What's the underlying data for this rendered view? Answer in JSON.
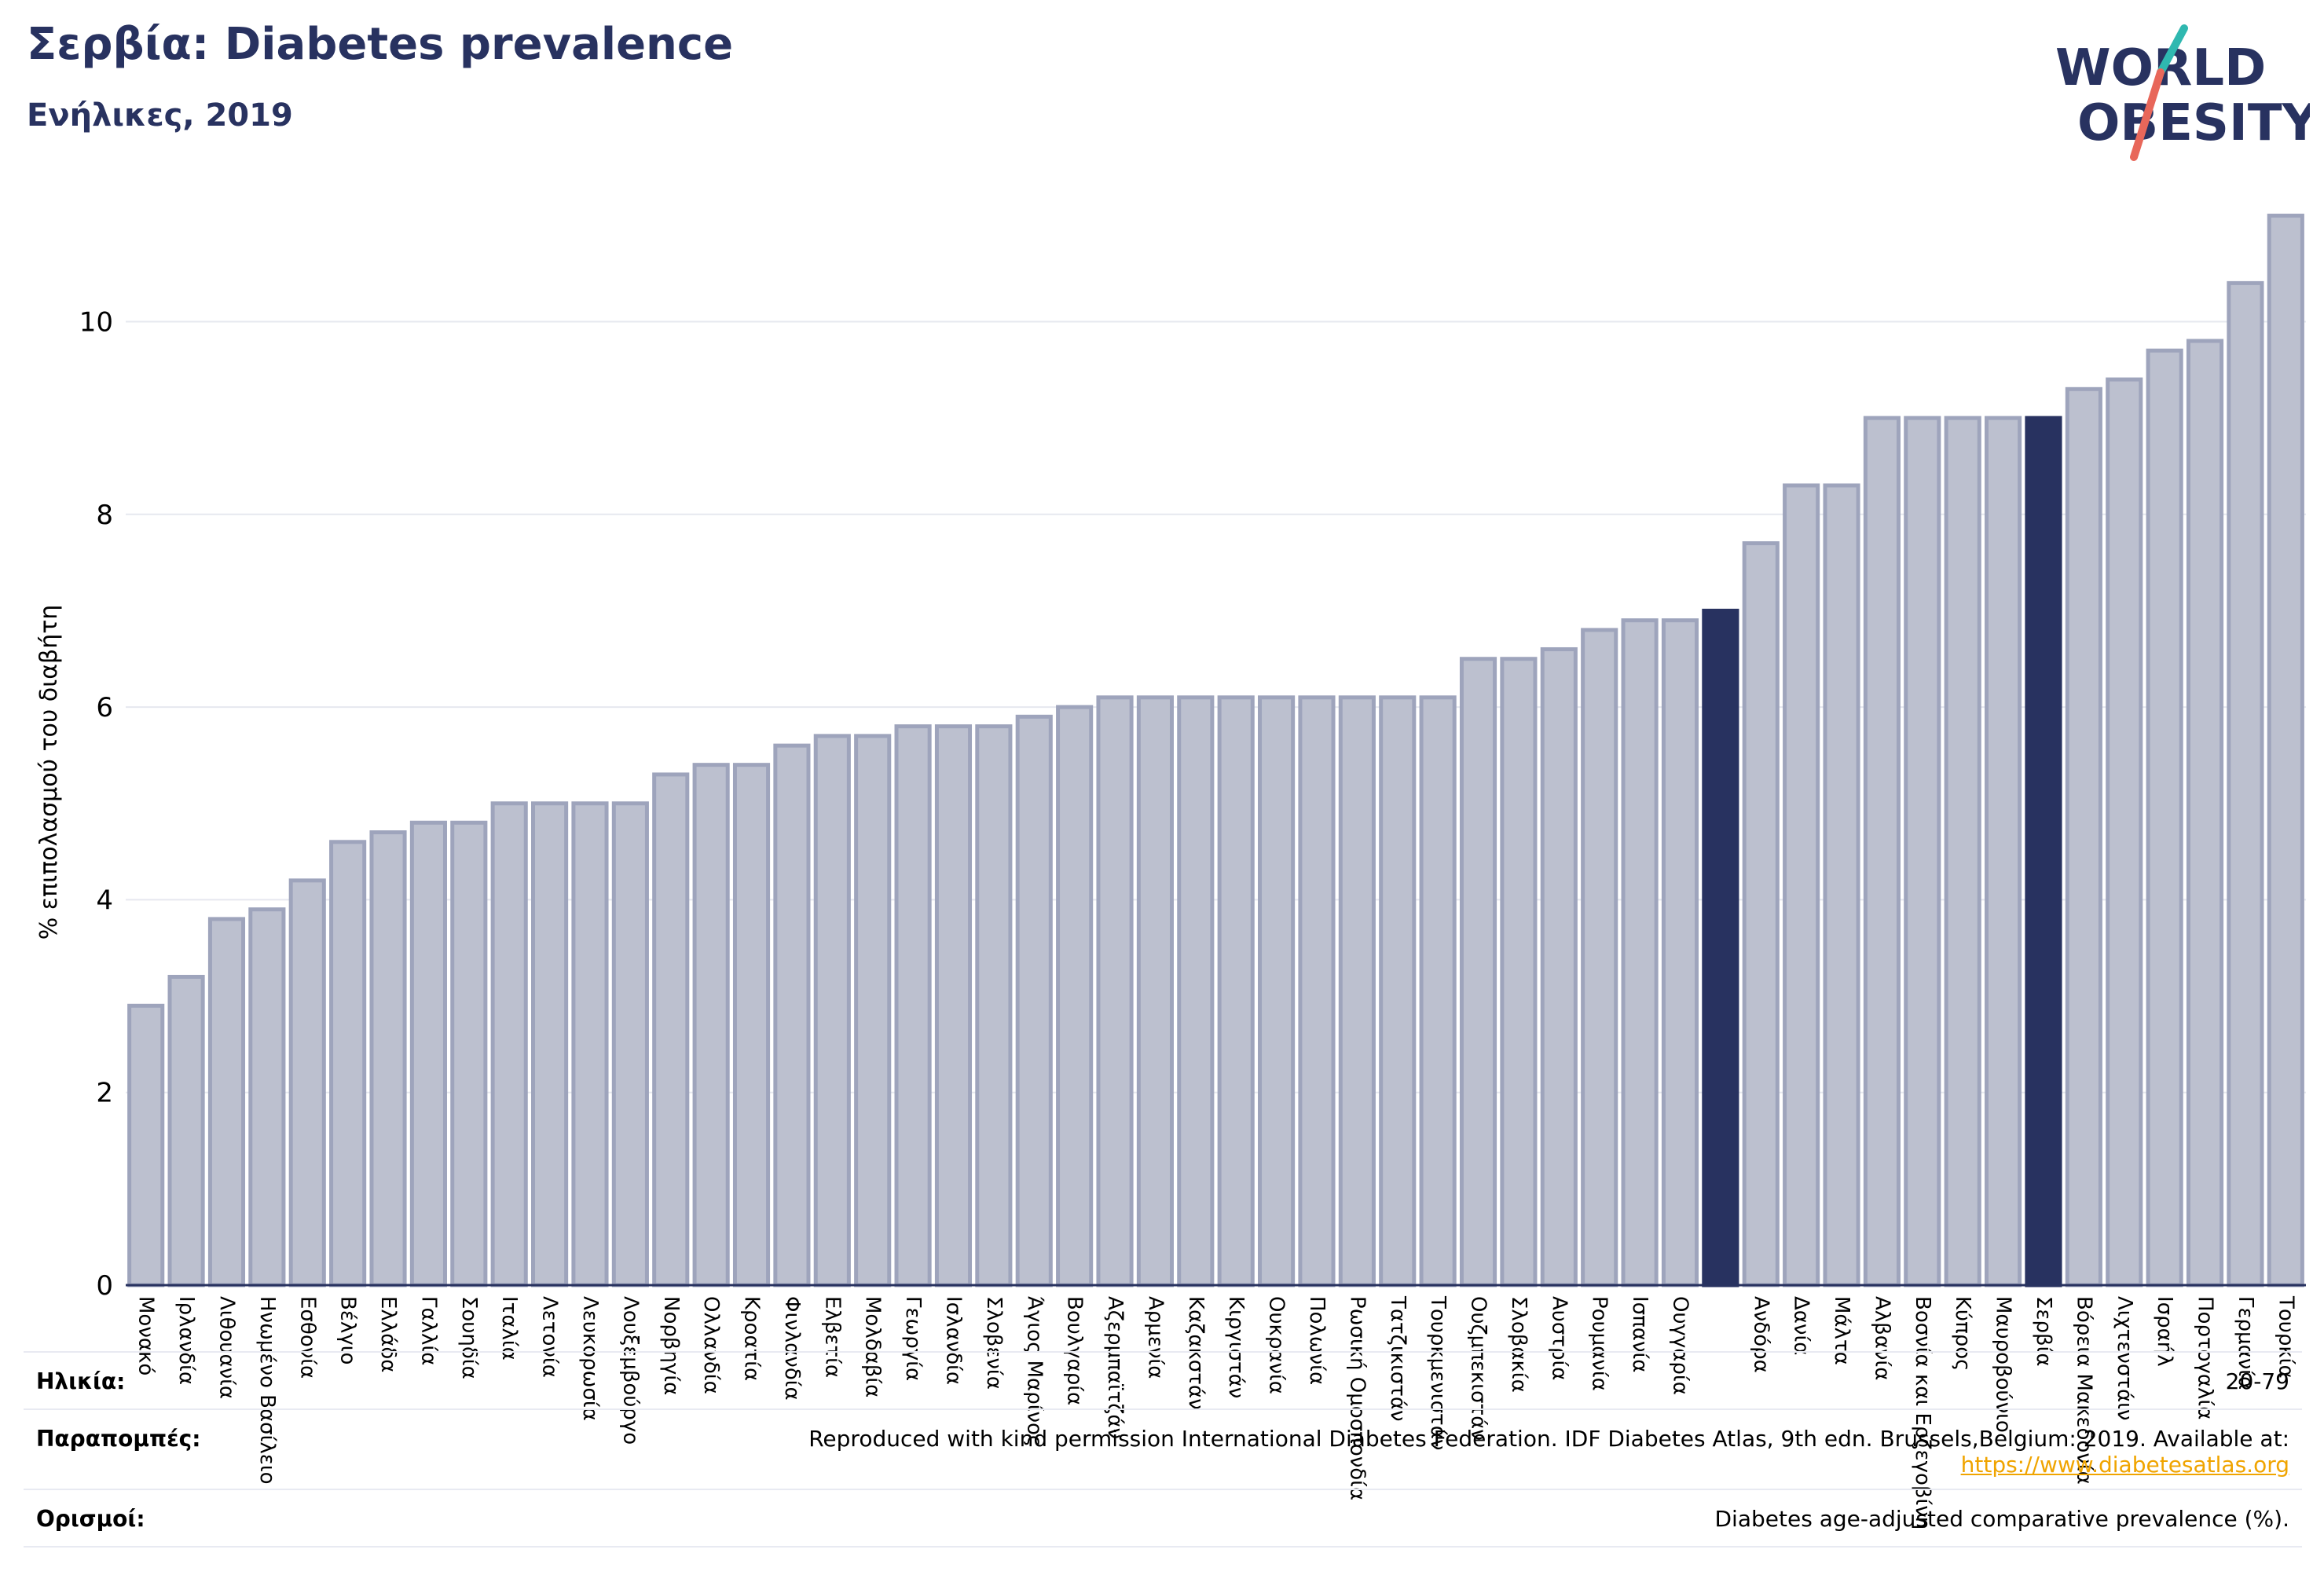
{
  "header": {
    "title": "Σερβία: Diabetes prevalence",
    "subtitle": "Ενήλικες, 2019",
    "logo_line1": "WORLD",
    "logo_line2": "OBESITY"
  },
  "colors": {
    "bar_default": "#bcc0cf",
    "bar_default_stroke": "#9ea4bc",
    "bar_highlight": "#283260",
    "axis_text": "#000000",
    "grid": "#e6e8ef",
    "logo_teal": "#2fb8b0",
    "logo_red": "#e8675a"
  },
  "chart_data": {
    "type": "bar",
    "title": "Σερβία: Diabetes prevalence",
    "subtitle": "Ενήλικες, 2019",
    "ylabel": "% επιπολασμού του διαβήτη",
    "xlabel": "",
    "ylim": [
      0,
      11.3
    ],
    "yticks": [
      0,
      2,
      4,
      6,
      8,
      10
    ],
    "grid": true,
    "legend": "none",
    "categories": [
      "Μονακό",
      "Ιρλανδία",
      "Λιθουανία",
      "Ηνωμένο Βασίλειο",
      "Εσθονία",
      "Βέλγιο",
      "Ελλάδα",
      "Γαλλία",
      "Σουηδία",
      "Ιταλία",
      "Λετονία",
      "Λευκορωσία",
      "Λουξεμβούργο",
      "Νορβηγία",
      "Ολλανδία",
      "Κροατία",
      "Φινλανδία",
      "Ελβετία",
      "Μολδαβία",
      "Γεωργία",
      "Ισλανδία",
      "Σλοβενία",
      "Άγιος Μαρίνος",
      "Βουλγαρία",
      "Αζερμπαϊτζάν",
      "Αρμενία",
      "Καζακστάν",
      "Κιργιστάν",
      "Ουκρανία",
      "Πολωνία",
      "Ρωσική Ομοσπονδία",
      "Τατζικιστάν",
      "Τουρκμενιστάν",
      "Ουζμπεκιστάν",
      "Σλοβακία",
      "Αυστρία",
      "Ρουμανία",
      "Ισπανία",
      "Ουγγαρία",
      "",
      "Ανδόρα",
      "Δανία",
      "Μάλτα",
      "Αλβανία",
      "Βοσνία και Ερζεγοβίνη",
      "Κύπρος",
      "Μαυροβούνιο",
      "Σερβία",
      "Βόρεια Μακεδονία",
      "Λιχτενστάιν",
      "Ισραήλ",
      "Πορτογαλία",
      "Γερμανία",
      "Τουρκία"
    ],
    "values": [
      2.9,
      3.2,
      3.8,
      3.9,
      4.2,
      4.6,
      4.7,
      4.8,
      4.8,
      5.0,
      5.0,
      5.0,
      5.0,
      5.3,
      5.4,
      5.4,
      5.6,
      5.7,
      5.7,
      5.8,
      5.8,
      5.8,
      5.9,
      6.0,
      6.1,
      6.1,
      6.1,
      6.1,
      6.1,
      6.1,
      6.1,
      6.1,
      6.1,
      6.5,
      6.5,
      6.6,
      6.8,
      6.9,
      6.9,
      7.0,
      7.7,
      8.3,
      8.3,
      9.0,
      9.0,
      9.0,
      9.0,
      9.0,
      9.3,
      9.4,
      9.7,
      9.8,
      10.4,
      11.1
    ],
    "highlight": [
      "",
      "Σερβία"
    ]
  },
  "footer": {
    "age_label": "Ηλικία:",
    "age_value": "20-79",
    "refs_label": "Παραπομπές:",
    "refs_value": "Reproduced with kind permission International Diabetes Federation. IDF Diabetes Atlas, 9th edn. Brussels,Belgium: 2019. Available at:",
    "refs_link": "https://www.diabetesatlas.org",
    "defs_label": "Ορισμοί:",
    "defs_value": "Diabetes age-adjusted comparative prevalence (%)."
  }
}
